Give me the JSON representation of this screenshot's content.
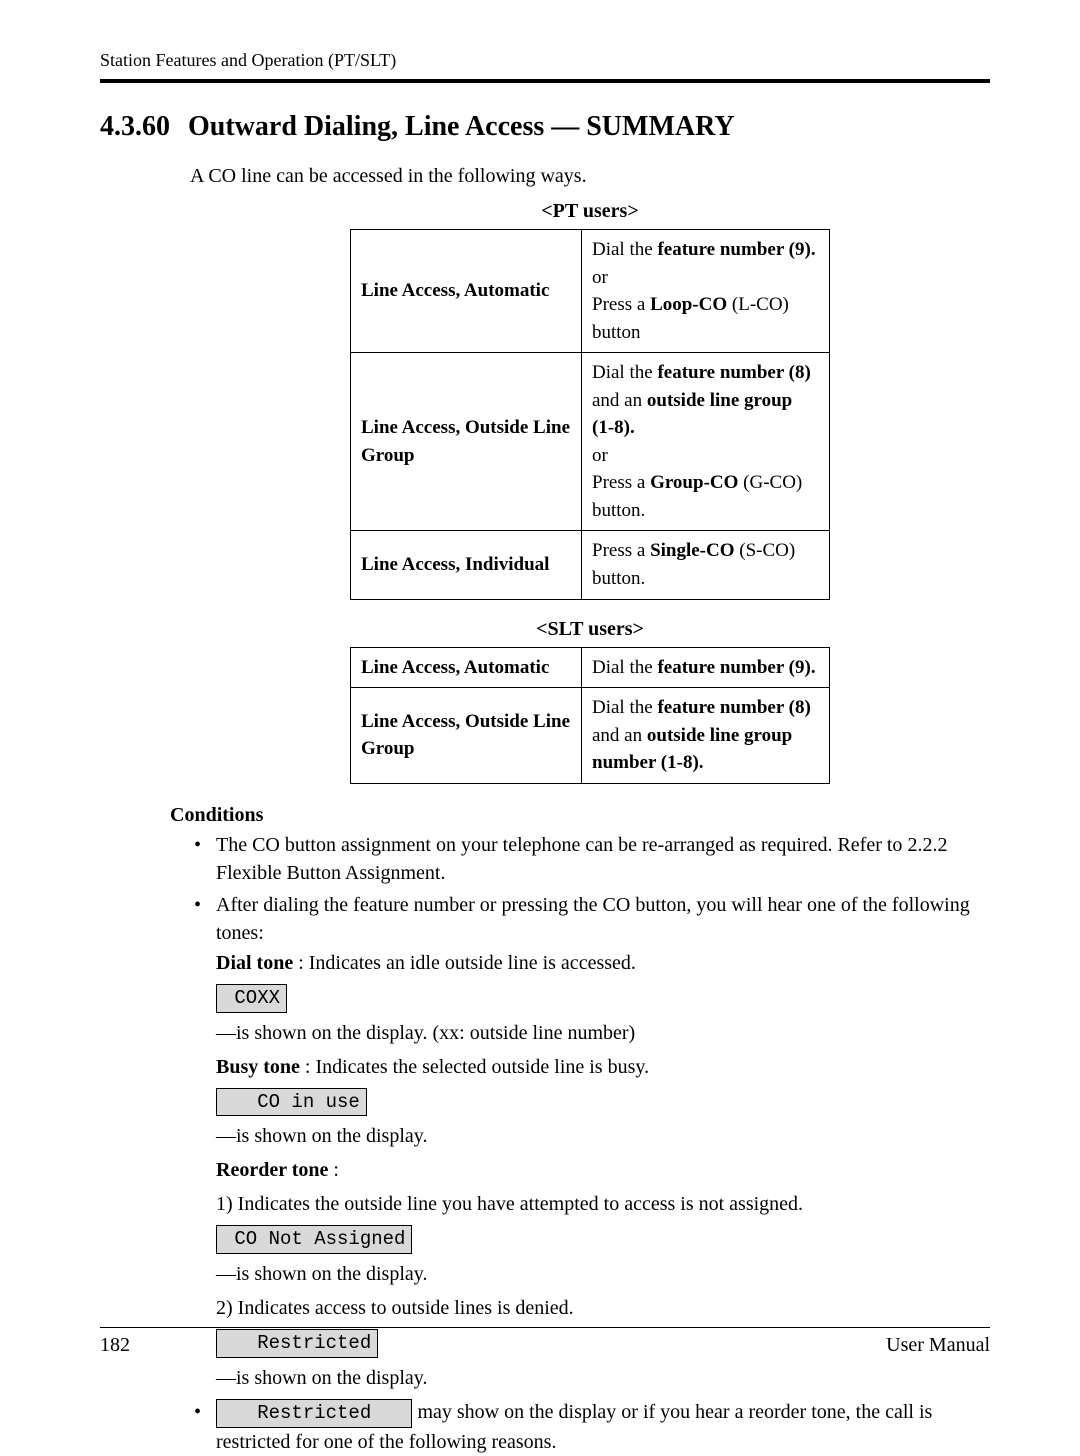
{
  "page": {
    "running_header": "Station Features and Operation (PT/SLT)",
    "section_number": "4.3.60",
    "section_title": "Outward Dialing, Line Access — SUMMARY",
    "intro": "A CO line can be accessed in the following ways.",
    "page_number": "182",
    "doc_title": "User Manual"
  },
  "pt_table": {
    "caption": "<PT users>",
    "rows": [
      {
        "label": "Line Access, Automatic",
        "cell": {
          "pre1": "Dial the ",
          "b1": "feature number (9).",
          "or": "or",
          "pre2": "Press a ",
          "b2": "Loop-CO",
          "post2": " (L-CO) button"
        }
      },
      {
        "label": "Line Access, Outside Line Group",
        "cell": {
          "pre1": "Dial the ",
          "b1": "feature number (8)",
          "mid1": " and an ",
          "b1b": "outside line group (1-8).",
          "or": "or",
          "pre2": "Press a ",
          "b2": "Group-CO",
          "post2": " (G-CO) button."
        }
      },
      {
        "label": "Line Access, Individual",
        "cell": {
          "pre": "Press a ",
          "b": "Single-CO",
          "post": " (S-CO) button."
        }
      }
    ]
  },
  "slt_table": {
    "caption": "<SLT users>",
    "rows": [
      {
        "label": "Line Access, Automatic",
        "cell": {
          "pre": "Dial the ",
          "b": "feature number (9)."
        }
      },
      {
        "label": "Line Access, Outside Line Group",
        "cell": {
          "pre": "Dial the ",
          "b1": "feature number (8)",
          "mid": " and an ",
          "b2": "outside line group number (1-8)."
        }
      }
    ]
  },
  "conditions": {
    "heading": "Conditions",
    "bullet1a": "The CO button assignment on your telephone can be re-arranged as required. Refer to ",
    "bullet1b": "2.2.2    Flexible Button Assignment.",
    "bullet2": "After dialing the feature number or pressing the CO button, you will hear one of the following tones:",
    "dial_b": "Dial tone",
    "dial_rest": " : Indicates an idle outside line is accessed.",
    "lcd_coxx": " COXX",
    "coxx_note": "—is shown on the display. (xx: outside line number)",
    "busy_b": "Busy tone",
    "busy_rest": " : Indicates the selected outside line is busy.",
    "lcd_inuse": "   CO in use",
    "inuse_note": "—is shown on the display.",
    "reorder_b": "Reorder tone",
    "reorder_colon": " :",
    "r1": "1) Indicates the outside line you have attempted to access is not assigned.",
    "lcd_notassigned": " CO Not Assigned",
    "r1_note": "—is shown on the display.",
    "r2": "2) Indicates access to outside lines is denied.",
    "lcd_restricted": "   Restricted",
    "r2_note": "—is shown on the display.",
    "bullet3_lcd": "   Restricted   ",
    "bullet3_rest": " may show on the display or if you hear a reorder tone, the call is restricted for one of the following reasons."
  }
}
